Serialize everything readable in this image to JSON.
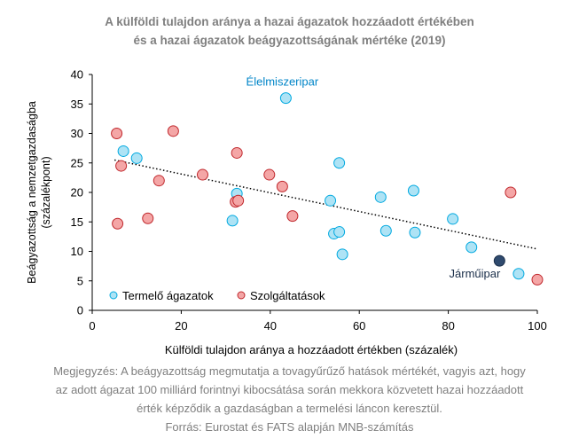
{
  "title": {
    "line1": "A külföldi tulajdon aránya a hazai ágazatok hozzáadott értékében",
    "line2": "és a hazai ágazatok beágyazottságának mértéke (2019)"
  },
  "note": {
    "line1": "Megjegyzés: A beágyazottság megmutatja a tovagyűrűző hatások mértékét, vagyis azt, hogy",
    "line2": "az adott ágazat 100 milliárd forintnyi kibocsátása során mekkora közvetett hazai hozzáadott",
    "line3": "érték képződik a gazdaságban a termelési láncon keresztül.",
    "line4": "Forrás: Eurostat és FATS alapján MNB-számítás"
  },
  "colors": {
    "termelo_fill": "#aee3f5",
    "termelo_stroke": "#00a9e0",
    "szolg_fill": "#f4a6a6",
    "szolg_stroke": "#c0282d",
    "highlight_fill": "#2f4a6e",
    "highlight_stroke": "#1b2f4a",
    "label_blue": "#0085c8",
    "label_dark": "#1b2f4a",
    "axis_text": "#000000",
    "title_text": "#7f7f7f"
  },
  "chart_data": {
    "type": "scatter",
    "xlabel": "Külföldi tulajdon aránya a hozzáadott értékben (százalék)",
    "ylabel_line1": "Beágyazottság a nemzetgazdaságba",
    "ylabel_line2": "(százalékpont)",
    "xlim": [
      0,
      100
    ],
    "ylim": [
      0,
      40
    ],
    "xticks": [
      "0",
      "20",
      "40",
      "60",
      "80",
      "100"
    ],
    "yticks": [
      "0",
      "5",
      "10",
      "15",
      "20",
      "25",
      "30",
      "35",
      "40"
    ],
    "grid": false,
    "legend_position": "bottom-left",
    "series": [
      {
        "name": "Termelő ágazatok",
        "points": [
          [
            7,
            27
          ],
          [
            10,
            25.8
          ],
          [
            32.5,
            19.8
          ],
          [
            31.5,
            15.2
          ],
          [
            43.5,
            36
          ],
          [
            53.5,
            18.6
          ],
          [
            54.3,
            13
          ],
          [
            55.5,
            25
          ],
          [
            55.5,
            13.3
          ],
          [
            56.2,
            9.5
          ],
          [
            64.8,
            19.2
          ],
          [
            66,
            13.5
          ],
          [
            72.2,
            20.3
          ],
          [
            72.5,
            13.2
          ],
          [
            81,
            15.5
          ],
          [
            85.2,
            10.7
          ],
          [
            95.8,
            6.2
          ]
        ]
      },
      {
        "name": "Szolgáltatások",
        "points": [
          [
            5.5,
            30
          ],
          [
            6.5,
            24.5
          ],
          [
            5.7,
            14.7
          ],
          [
            12.5,
            15.6
          ],
          [
            15,
            22
          ],
          [
            18.2,
            30.4
          ],
          [
            24.8,
            23
          ],
          [
            32.5,
            26.7
          ],
          [
            32.2,
            18.4
          ],
          [
            32.8,
            18.6
          ],
          [
            39.8,
            23
          ],
          [
            42.7,
            21
          ],
          [
            45,
            16
          ],
          [
            94,
            20
          ],
          [
            100,
            5.2
          ]
        ]
      }
    ],
    "highlighted_point": {
      "label": "Járműipar",
      "x": 91.5,
      "y": 8.4
    },
    "annotations": [
      {
        "text": "Élelmiszeripar",
        "x": 43.5,
        "y": 36
      },
      {
        "text": "Járműipar",
        "x": 91.5,
        "y": 8.4
      }
    ],
    "trendline": {
      "style": "dotted",
      "start": [
        5,
        25.5
      ],
      "end": [
        100,
        10.4
      ]
    }
  }
}
